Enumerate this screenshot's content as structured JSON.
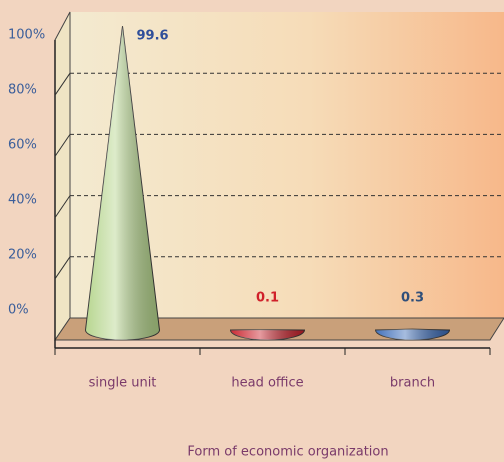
{
  "chart_data": {
    "type": "cone",
    "x_label": "Form of economic organization",
    "categories": [
      "single unit",
      "head office",
      "branch"
    ],
    "values": [
      99.6,
      0.1,
      0.3
    ],
    "colors": [
      "#b4d48a",
      "#c8202a",
      "#3a6bb8"
    ],
    "label_colors": [
      "#2f4f9a",
      "#d0202a",
      "#2f4f7a"
    ],
    "ylim": [
      0,
      100
    ],
    "yticks": [
      {
        "value": 0,
        "label": "0%"
      },
      {
        "value": 20,
        "label": "20%"
      },
      {
        "value": 40,
        "label": "40%"
      },
      {
        "value": 60,
        "label": "60%"
      },
      {
        "value": 80,
        "label": "80%"
      },
      {
        "value": 100,
        "label": "100%"
      }
    ],
    "grid": true
  }
}
